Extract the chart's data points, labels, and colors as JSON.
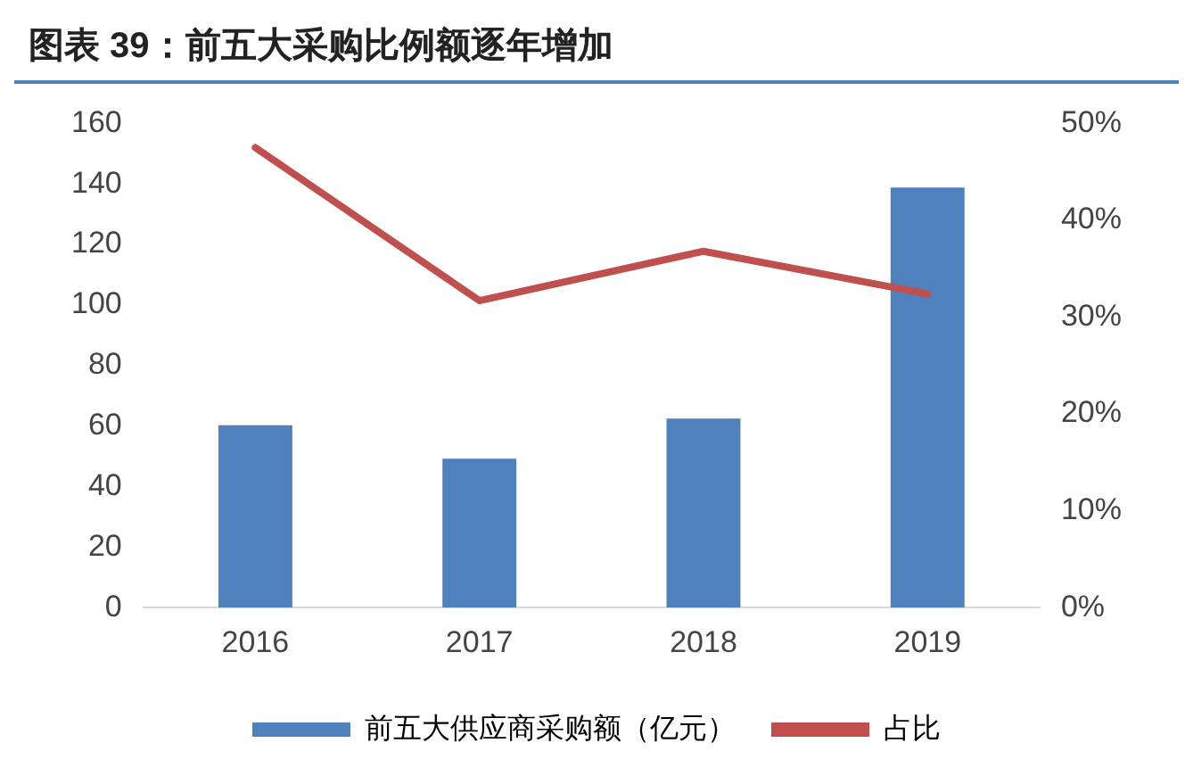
{
  "chart_data": {
    "type": "bar",
    "title": "图表 39：前五大采购比例额逐年增加",
    "categories": [
      "2016",
      "2017",
      "2018",
      "2019"
    ],
    "series": [
      {
        "name": "前五大供应商采购额（亿元）",
        "color": "#4f81bd",
        "values": [
          60.3,
          49.2,
          62.5,
          138.8
        ]
      },
      {
        "name": "占比",
        "type": "line",
        "axis": "y2",
        "color": "#c0504d",
        "values": [
          47.5,
          31.7,
          36.8,
          32.4
        ]
      }
    ],
    "ylim": [
      0,
      160
    ],
    "yticks": [
      0,
      20,
      40,
      60,
      80,
      100,
      120,
      140,
      160
    ],
    "y2lim": [
      0,
      50
    ],
    "y2ticks": [
      {
        "value": 0,
        "label": "0%"
      },
      {
        "value": 10,
        "label": "10%"
      },
      {
        "value": 20,
        "label": "20%"
      },
      {
        "value": 30,
        "label": "30%"
      },
      {
        "value": 40,
        "label": "40%"
      },
      {
        "value": 50,
        "label": "50%"
      }
    ],
    "grid": false,
    "legend": "bottom",
    "marker": "none"
  }
}
